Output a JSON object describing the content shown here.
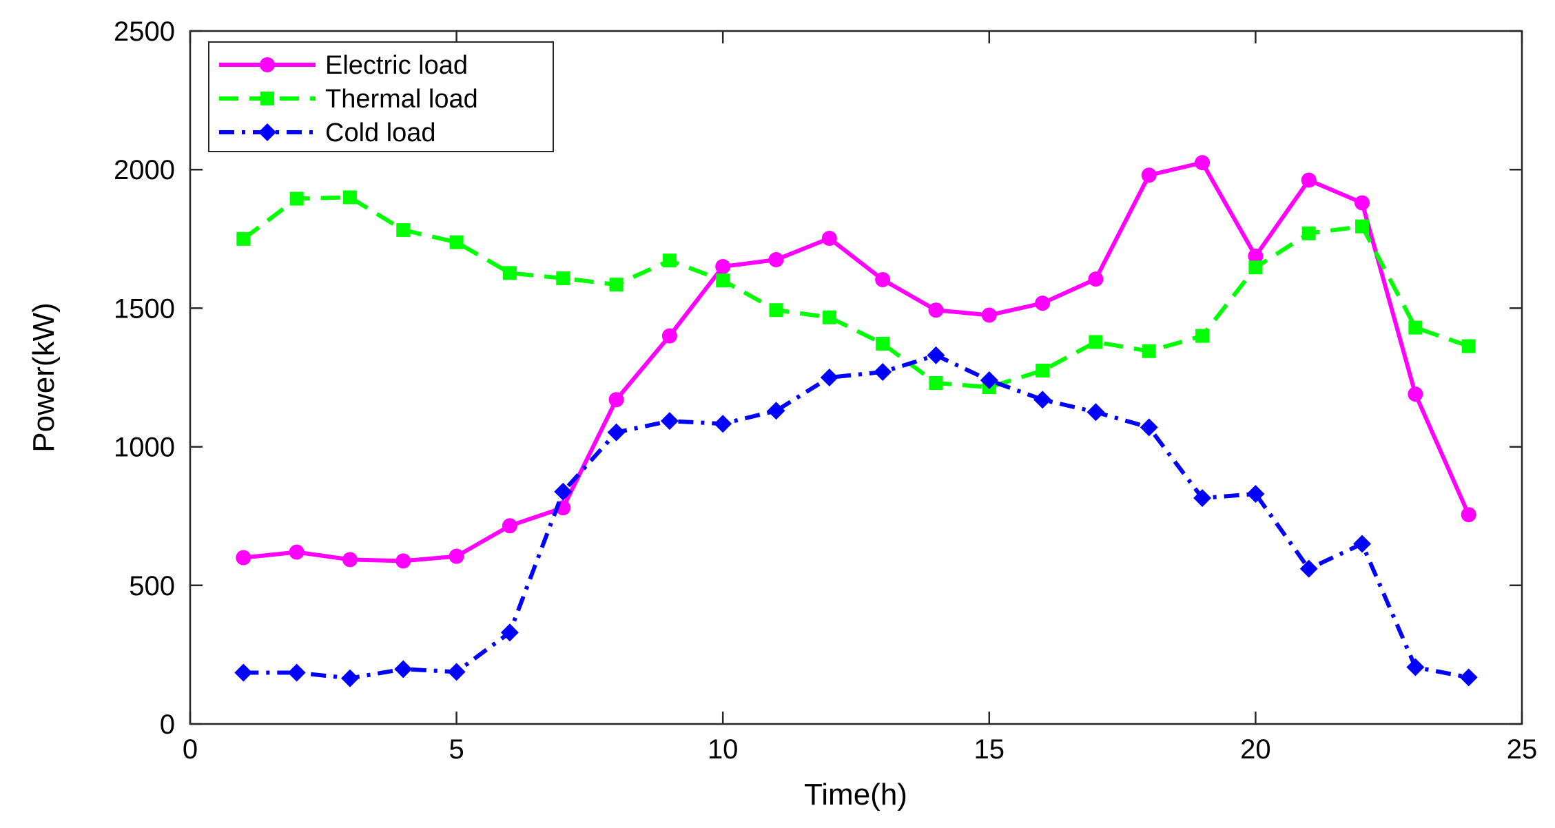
{
  "chart_data": {
    "type": "line",
    "title": "",
    "xlabel": "Time(h)",
    "ylabel": "Power(kW)",
    "xlim": [
      0,
      25
    ],
    "ylim": [
      0,
      2500
    ],
    "xticks": [
      0,
      5,
      10,
      15,
      20,
      25
    ],
    "yticks": [
      0,
      500,
      1000,
      1500,
      2000,
      2500
    ],
    "grid": false,
    "legend_position": "top-left",
    "x": [
      1,
      2,
      3,
      4,
      5,
      6,
      7,
      8,
      9,
      10,
      11,
      12,
      13,
      14,
      15,
      16,
      17,
      18,
      19,
      20,
      21,
      22,
      23,
      24
    ],
    "series": [
      {
        "name": "Electric load",
        "color": "#ff00ff",
        "line_style": "solid",
        "marker": "circle",
        "values": [
          600,
          620,
          593,
          588,
          605,
          715,
          780,
          1170,
          1400,
          1650,
          1675,
          1752,
          1603,
          1493,
          1475,
          1518,
          1605,
          1980,
          2025,
          1688,
          1962,
          1880,
          1190,
          755
        ]
      },
      {
        "name": "Thermal load",
        "color": "#00ff00",
        "line_style": "dashed",
        "marker": "square",
        "values": [
          1750,
          1895,
          1900,
          1782,
          1738,
          1627,
          1608,
          1585,
          1672,
          1600,
          1493,
          1467,
          1372,
          1230,
          1215,
          1275,
          1378,
          1345,
          1400,
          1647,
          1770,
          1795,
          1430,
          1363
        ]
      },
      {
        "name": "Cold load",
        "color": "#0000ff",
        "line_style": "dashdot",
        "marker": "diamond",
        "values": [
          185,
          185,
          165,
          198,
          188,
          330,
          838,
          1052,
          1093,
          1083,
          1130,
          1250,
          1270,
          1330,
          1240,
          1170,
          1125,
          1070,
          815,
          830,
          560,
          650,
          205,
          168
        ]
      }
    ]
  }
}
